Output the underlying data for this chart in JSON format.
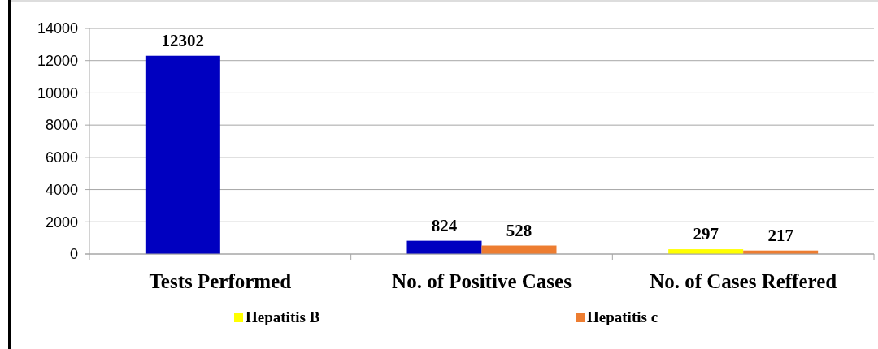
{
  "chart_data": {
    "type": "bar",
    "categories": [
      "Tests Performed",
      "No. of Positive Cases",
      "No. of Cases Reffered"
    ],
    "series": [
      {
        "name": "Hepatitis B",
        "color": "#ffff00",
        "colors": [
          "#0000c0",
          "#0000c0",
          "#ffff00"
        ],
        "values": [
          12302,
          824,
          297
        ]
      },
      {
        "name": "Hepatitis c",
        "color": "#ed7d31",
        "values": [
          null,
          528,
          217
        ]
      }
    ],
    "ylim": [
      0,
      14000
    ],
    "yticks": [
      0,
      2000,
      4000,
      6000,
      8000,
      10000,
      12000,
      14000
    ],
    "grid": "y",
    "legend": "bottom",
    "data_labels": true
  }
}
